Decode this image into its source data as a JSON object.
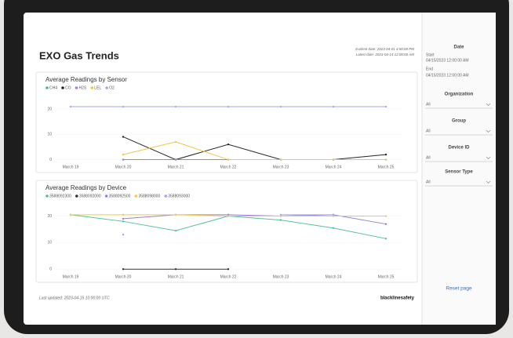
{
  "header": {
    "title": "EXO Gas Trends",
    "earliest": "Earliest date: 2023-04-01 4:00:00 PM",
    "latest": "Latest date: 2023-04-14 12:00:00 AM"
  },
  "filters": {
    "date": {
      "label": "Date",
      "start_label": "Start",
      "start": "04/15/2023 12:00:00 AM",
      "end_label": "End",
      "end": "04/15/2023 12:00:00 AM"
    },
    "dropdowns": [
      {
        "label": "Organization",
        "value": "All"
      },
      {
        "label": "Group",
        "value": "All"
      },
      {
        "label": "Device ID",
        "value": "All"
      },
      {
        "label": "Sensor Type",
        "value": "All"
      }
    ],
    "reset": "Reset page"
  },
  "footer": {
    "updated": "Last updated: 2023-04-15 10:00:00 UTC",
    "brand": "blacklinesafety"
  },
  "chart_data": [
    {
      "type": "line",
      "title": "Average Readings by Sensor",
      "categories": [
        "March 19",
        "March 20",
        "March 21",
        "March 22",
        "March 23",
        "March 24",
        "March 25"
      ],
      "series": [
        {
          "name": "CH4",
          "color": "#3cbf8e",
          "values": [
            null,
            0,
            0,
            0,
            0,
            0,
            0
          ]
        },
        {
          "name": "CO",
          "color": "#262626",
          "values": [
            null,
            9,
            0,
            6,
            0,
            0,
            2
          ]
        },
        {
          "name": "H2S",
          "color": "#a77bd8",
          "values": [
            null,
            0,
            0,
            0,
            0,
            0,
            0
          ]
        },
        {
          "name": "LEL",
          "color": "#f0c54a",
          "values": [
            null,
            2,
            7,
            0,
            0,
            0,
            0
          ]
        },
        {
          "name": "O2",
          "color": "#a3a6ef",
          "values": [
            20.9,
            20.9,
            20.9,
            20.9,
            20.9,
            20.9,
            20.9
          ]
        }
      ],
      "ylim": [
        -2,
        24
      ],
      "yticks": [
        0,
        10,
        20
      ]
    },
    {
      "type": "line",
      "title": "Average Readings by Device",
      "categories": [
        "March 19",
        "March 20",
        "March 21",
        "March 22",
        "March 23",
        "March 24",
        "March 25"
      ],
      "series": [
        {
          "name": "3588092300",
          "color": "#52c49a",
          "values": [
            20.5,
            18,
            14.5,
            20,
            18.5,
            15.5,
            11.5
          ]
        },
        {
          "name": "3588092090",
          "color": "#333333",
          "values": [
            null,
            0,
            0,
            0,
            null,
            null,
            null
          ]
        },
        {
          "name": "3588092500",
          "color": "#9b80d6",
          "values": [
            null,
            19,
            20.5,
            20.5,
            20,
            20.5,
            17
          ]
        },
        {
          "name": "3588098000",
          "color": "#f0c850",
          "values": [
            20.5,
            20.5,
            20.5,
            20,
            20,
            20,
            20
          ]
        },
        {
          "name": "3588093000",
          "color": "#a0a4ee",
          "values": [
            null,
            13,
            null,
            null,
            20.5,
            20.5,
            null
          ]
        }
      ],
      "ylim": [
        -2,
        24
      ],
      "yticks": [
        0,
        10,
        20
      ]
    }
  ]
}
